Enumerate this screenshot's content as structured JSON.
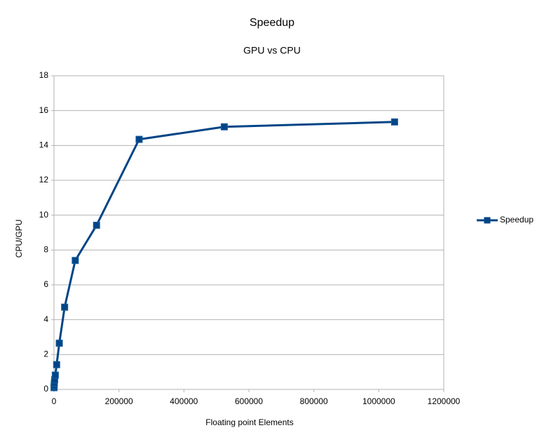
{
  "chart_data": {
    "type": "scatter",
    "title": "Speedup",
    "subtitle": "GPU vs CPU",
    "x_label": "Floating point Elements",
    "y_label": "CPU/GPU",
    "series": [
      {
        "name": "Speedup",
        "color": "#004586",
        "x": [
          256,
          512,
          1024,
          2048,
          4096,
          8192,
          16384,
          32768,
          65536,
          131072,
          262144,
          524288,
          1048576
        ],
        "values": [
          0.1,
          0.2,
          0.35,
          0.55,
          0.82,
          1.42,
          2.65,
          4.72,
          7.4,
          9.42,
          14.35,
          15.07,
          15.35
        ]
      }
    ],
    "xlim": [
      0,
      1200000
    ],
    "xticks": [
      0,
      200000,
      400000,
      600000,
      800000,
      1000000,
      1200000
    ],
    "ylim": [
      0,
      18
    ],
    "yticks": [
      0,
      2,
      4,
      6,
      8,
      10,
      12,
      14,
      16,
      18
    ],
    "grid": true,
    "legend": "right"
  }
}
